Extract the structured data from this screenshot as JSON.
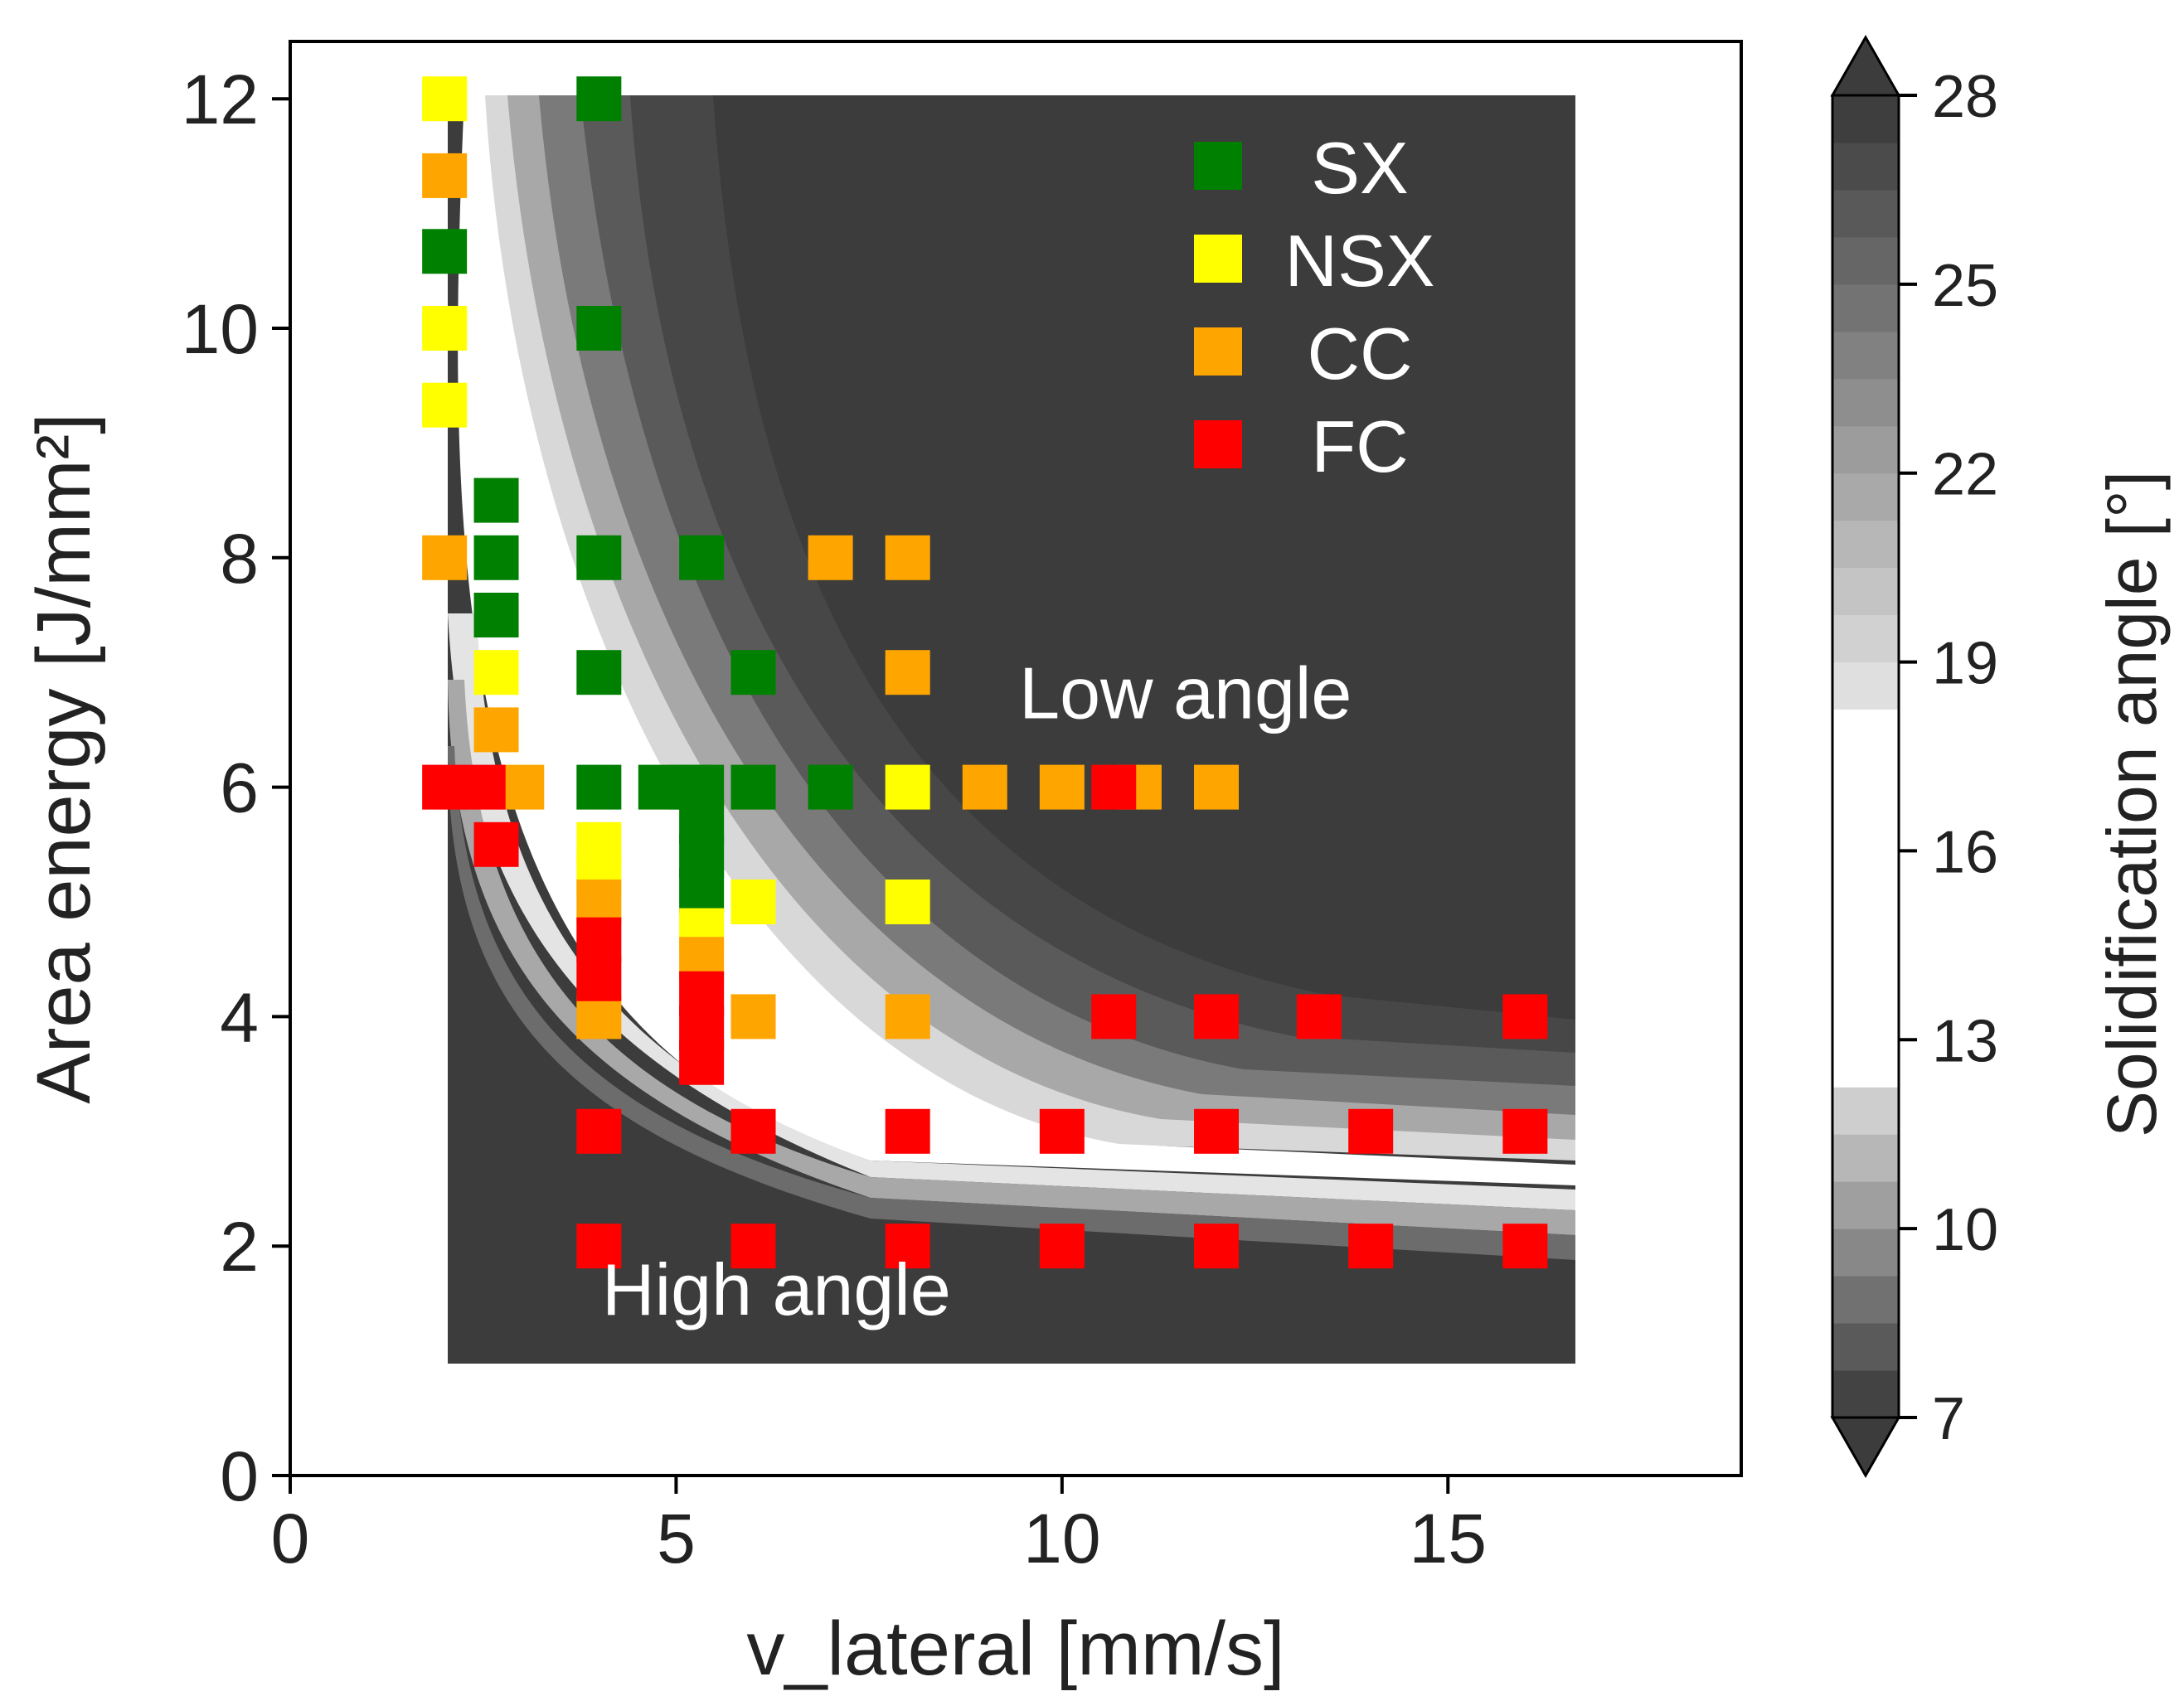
{
  "chart_data": {
    "type": "scatter",
    "title": "",
    "xlabel": "v_lateral [mm/s]",
    "ylabel": "Area energy [J/mm²]",
    "xlim": [
      0,
      18.8
    ],
    "ylim": [
      0,
      12.5
    ],
    "x_ticks": [
      0,
      5,
      10,
      15
    ],
    "y_ticks": [
      0,
      2,
      4,
      6,
      8,
      10,
      12
    ],
    "grid": false,
    "legend_position": "top-right",
    "annotations": [
      {
        "text": "Low angle",
        "x": 11.6,
        "y": 6.6
      },
      {
        "text": "High angle",
        "x": 6.3,
        "y": 1.4
      }
    ],
    "colorbar": {
      "label": "Solidification angle [°]",
      "min": 7,
      "max": 28,
      "ticks": [
        7,
        10,
        13,
        16,
        19,
        22,
        25,
        28
      ],
      "extend": "both"
    },
    "series": [
      {
        "name": "SX",
        "color": "#008000",
        "points": [
          [
            4,
            12
          ],
          [
            2,
            10.67
          ],
          [
            4,
            10
          ],
          [
            2.67,
            8.5
          ],
          [
            2.67,
            8
          ],
          [
            4,
            8
          ],
          [
            5.33,
            8
          ],
          [
            2.67,
            7.5
          ],
          [
            4,
            7
          ],
          [
            6,
            7
          ],
          [
            4,
            6
          ],
          [
            4.8,
            6
          ],
          [
            5.2,
            6
          ],
          [
            5.33,
            6
          ],
          [
            6,
            6
          ],
          [
            7,
            6
          ],
          [
            5.33,
            5.7
          ],
          [
            5.33,
            5.4
          ],
          [
            5.33,
            5.1
          ]
        ]
      },
      {
        "name": "NSX",
        "color": "#ffff00",
        "points": [
          [
            2,
            12
          ],
          [
            2,
            10
          ],
          [
            2,
            9.33
          ],
          [
            2.67,
            7
          ],
          [
            8,
            6
          ],
          [
            4,
            5.5
          ],
          [
            4,
            5.25
          ],
          [
            6,
            5
          ],
          [
            8,
            5
          ],
          [
            5.33,
            4.75
          ]
        ]
      },
      {
        "name": "CC",
        "color": "#ffa500",
        "points": [
          [
            2,
            11.33
          ],
          [
            2,
            8
          ],
          [
            7,
            8
          ],
          [
            8,
            8
          ],
          [
            8,
            7
          ],
          [
            2.67,
            6.5
          ],
          [
            3,
            6
          ],
          [
            9,
            6
          ],
          [
            10,
            6
          ],
          [
            11,
            6
          ],
          [
            12,
            6
          ],
          [
            4,
            5
          ],
          [
            5.33,
            4.5
          ],
          [
            4,
            4
          ],
          [
            6,
            4
          ],
          [
            8,
            4
          ]
        ]
      },
      {
        "name": "FC",
        "color": "#ff0000",
        "points": [
          [
            2,
            6
          ],
          [
            2.5,
            6
          ],
          [
            10.67,
            6
          ],
          [
            2.67,
            5.5
          ],
          [
            4,
            4.67
          ],
          [
            4,
            4.33
          ],
          [
            5.33,
            4.2
          ],
          [
            5.33,
            3.9
          ],
          [
            5.33,
            3.6
          ],
          [
            10.67,
            4
          ],
          [
            12,
            4
          ],
          [
            13.33,
            4
          ],
          [
            16,
            4
          ],
          [
            4,
            3
          ],
          [
            6,
            3
          ],
          [
            8,
            3
          ],
          [
            10,
            3
          ],
          [
            12,
            3
          ],
          [
            14,
            3
          ],
          [
            16,
            3
          ],
          [
            4,
            2
          ],
          [
            6,
            2
          ],
          [
            8,
            2
          ],
          [
            10,
            2
          ],
          [
            12,
            2
          ],
          [
            14,
            2
          ],
          [
            16,
            2
          ]
        ]
      }
    ]
  }
}
